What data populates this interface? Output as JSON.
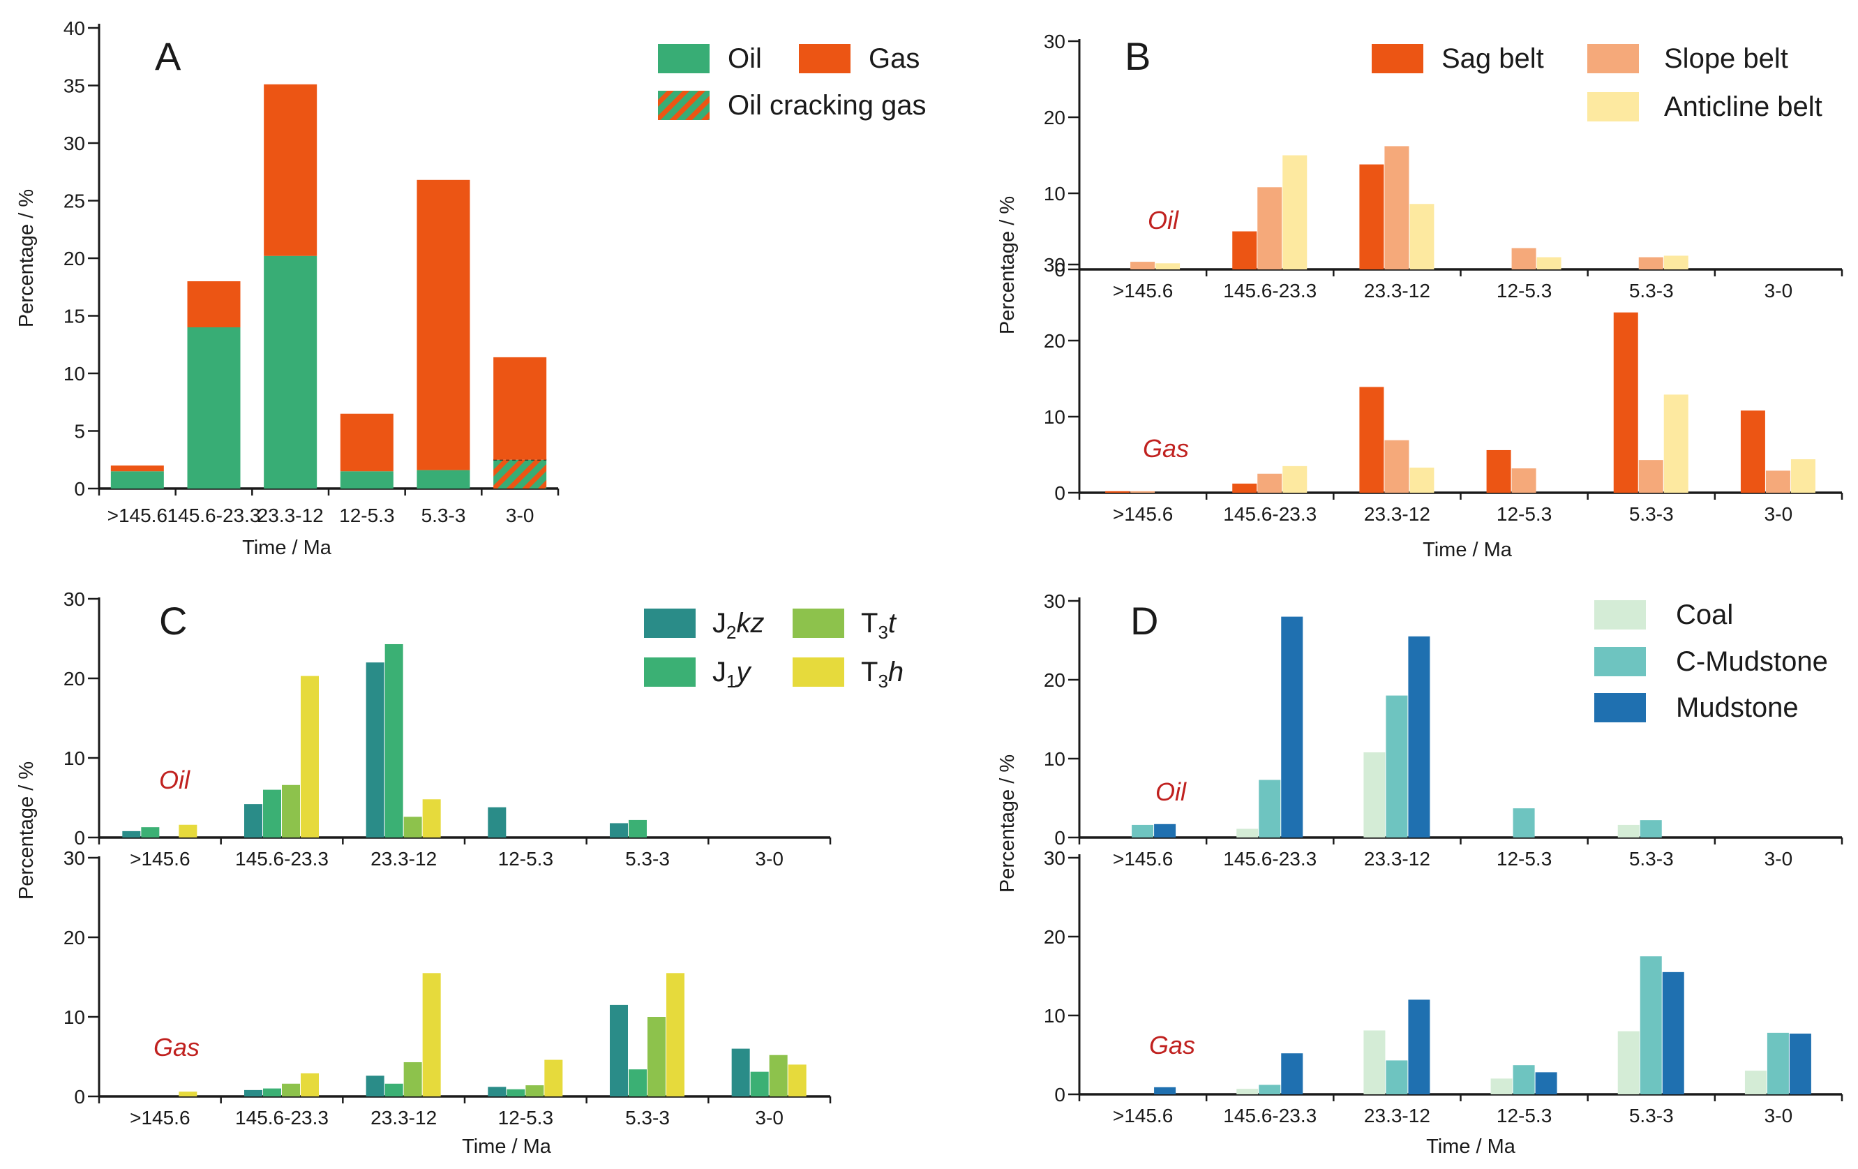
{
  "figure": {
    "panels": [
      "A",
      "B",
      "C",
      "D"
    ]
  },
  "chart_data": [
    {
      "id": "A",
      "type": "bar",
      "stacked": true,
      "title": "A",
      "xlabel": "Time / Ma",
      "ylabel": "Percentage / %",
      "ylim": [
        0,
        40
      ],
      "yticks": [
        0,
        5,
        10,
        15,
        20,
        25,
        30,
        35,
        40
      ],
      "categories": [
        ">145.6",
        "145.6-23.3",
        "23.3-12",
        "12-5.3",
        "5.3-3",
        "3-0"
      ],
      "series": [
        {
          "name": "Oil",
          "color": "#38ad75",
          "values": [
            1.5,
            14,
            20.2,
            1.5,
            1.6,
            0
          ]
        },
        {
          "name": "Oil cracking gas",
          "color": "#38ad75",
          "pattern": "#ec5514",
          "values": [
            0,
            0,
            0,
            0,
            0,
            2.5
          ]
        },
        {
          "name": "Gas",
          "color": "#ec5514",
          "values": [
            0.5,
            4,
            14.9,
            5,
            25.2,
            8.9
          ]
        }
      ],
      "legend": [
        "Oil",
        "Gas",
        "Oil cracking gas"
      ],
      "legend_position": "top-right"
    },
    {
      "id": "B",
      "type": "bar",
      "title": "B",
      "xlabel": "Time / Ma",
      "ylabel": "Percentage / %",
      "ylim": [
        0,
        30
      ],
      "yticks": [
        0,
        10,
        20,
        30
      ],
      "categories": [
        ">145.6",
        "145.6-23.3",
        "23.3-12",
        "12-5.3",
        "5.3-3",
        "3-0"
      ],
      "legend": [
        "Sag belt",
        "Slope belt",
        "Anticline belt"
      ],
      "legend_position": "top-right",
      "subplots": [
        {
          "annotation": "Oil",
          "series": [
            {
              "name": "Sag belt",
              "color": "#ec5514",
              "values": [
                0,
                5,
                13.8,
                0,
                0,
                0
              ]
            },
            {
              "name": "Slope belt",
              "color": "#f5a97a",
              "values": [
                1,
                10.8,
                16.2,
                2.8,
                1.6,
                0
              ]
            },
            {
              "name": "Anticline belt",
              "color": "#fde9a0",
              "values": [
                0.8,
                15,
                8.6,
                1.6,
                1.8,
                0
              ]
            }
          ]
        },
        {
          "annotation": "Gas",
          "series": [
            {
              "name": "Sag belt",
              "color": "#ec5514",
              "values": [
                0.2,
                1.2,
                13.9,
                5.6,
                23.7,
                10.8
              ]
            },
            {
              "name": "Slope belt",
              "color": "#f5a97a",
              "values": [
                0.2,
                2.5,
                6.9,
                3.2,
                4.3,
                2.9
              ]
            },
            {
              "name": "Anticline belt",
              "color": "#fde9a0",
              "values": [
                0,
                3.5,
                3.3,
                0,
                12.9,
                4.4
              ]
            }
          ]
        }
      ]
    },
    {
      "id": "C",
      "type": "bar",
      "title": "C",
      "xlabel": "Time / Ma",
      "ylabel": "Percentage / %",
      "ylim": [
        0,
        30
      ],
      "yticks": [
        0,
        10,
        20,
        30
      ],
      "categories": [
        ">145.6",
        "145.6-23.3",
        "23.3-12",
        "12-5.3",
        "5.3-3",
        "3-0"
      ],
      "legend_position": "top-right",
      "legend": [
        {
          "base": "J",
          "sub": "2",
          "italic": "kz"
        },
        {
          "base": "T",
          "sub": "3",
          "italic": "t"
        },
        {
          "base": "J",
          "sub": "1",
          "italic": "y"
        },
        {
          "base": "T",
          "sub": "3",
          "italic": "h"
        }
      ],
      "subplots": [
        {
          "annotation": "Oil",
          "series": [
            {
              "name": "J2kz",
              "color": "#2a8c88",
              "values": [
                0.8,
                4.2,
                22,
                3.8,
                1.8,
                0
              ]
            },
            {
              "name": "J1y",
              "color": "#3bb074",
              "values": [
                1.3,
                6,
                24.3,
                0,
                2.2,
                0
              ]
            },
            {
              "name": "T3t",
              "color": "#8dc24c",
              "values": [
                0,
                6.6,
                2.6,
                0,
                0,
                0
              ]
            },
            {
              "name": "T3h",
              "color": "#e6da3c",
              "values": [
                1.6,
                20.3,
                4.8,
                0,
                0,
                0
              ]
            }
          ]
        },
        {
          "annotation": "Gas",
          "series": [
            {
              "name": "J2kz",
              "color": "#2a8c88",
              "values": [
                0,
                0.8,
                2.6,
                1.2,
                11.5,
                6
              ]
            },
            {
              "name": "J1y",
              "color": "#3bb074",
              "values": [
                0,
                1,
                1.6,
                0.9,
                3.4,
                3.1
              ]
            },
            {
              "name": "T3t",
              "color": "#8dc24c",
              "values": [
                0,
                1.6,
                4.3,
                1.4,
                10,
                5.2
              ]
            },
            {
              "name": "T3h",
              "color": "#e6da3c",
              "values": [
                0.6,
                2.9,
                15.5,
                4.6,
                15.5,
                4
              ]
            }
          ]
        }
      ]
    },
    {
      "id": "D",
      "type": "bar",
      "title": "D",
      "xlabel": "Time / Ma",
      "ylabel": "Percentage / %",
      "ylim": [
        0,
        30
      ],
      "yticks": [
        0,
        10,
        20,
        30
      ],
      "categories": [
        ">145.6",
        "145.6-23.3",
        "23.3-12",
        "12-5.3",
        "5.3-3",
        "3-0"
      ],
      "legend": [
        "Coal",
        "C-Mudstone",
        "Mudstone"
      ],
      "legend_position": "top-right",
      "subplots": [
        {
          "annotation": "Oil",
          "series": [
            {
              "name": "Coal",
              "color": "#d4ecd6",
              "values": [
                0,
                1.1,
                10.8,
                0,
                1.6,
                0
              ]
            },
            {
              "name": "C-Mudstone",
              "color": "#6ec4c0",
              "values": [
                1.6,
                7.3,
                18,
                3.7,
                2.2,
                0
              ]
            },
            {
              "name": "Mudstone",
              "color": "#1f70b0",
              "values": [
                1.7,
                28,
                25.5,
                0,
                0,
                0
              ]
            }
          ]
        },
        {
          "annotation": "Gas",
          "series": [
            {
              "name": "Coal",
              "color": "#d4ecd6",
              "values": [
                0,
                0.7,
                8.1,
                2,
                8,
                3
              ]
            },
            {
              "name": "C-Mudstone",
              "color": "#6ec4c0",
              "values": [
                0,
                1.2,
                4.3,
                3.7,
                17.5,
                7.8
              ]
            },
            {
              "name": "Mudstone",
              "color": "#1f70b0",
              "values": [
                0.9,
                5.2,
                12,
                2.8,
                15.5,
                7.7
              ]
            }
          ]
        }
      ]
    }
  ]
}
